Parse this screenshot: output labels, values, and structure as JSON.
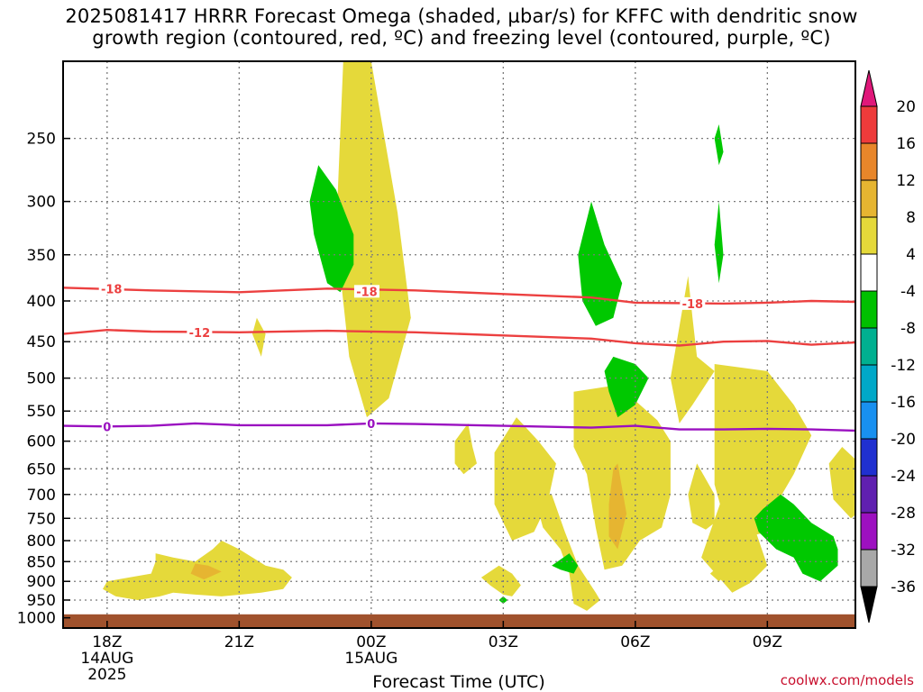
{
  "title": {
    "line1": "2025081417 HRRR Forecast Omega (shaded, µbar/s) for KFFC with dendritic snow",
    "line2": "growth region (contoured, red, ºC) and freezing level (contoured, purple, ºC)"
  },
  "credit": "coolwx.com/models",
  "chart_data": {
    "type": "contour",
    "xlabel": "Forecast Time (UTC)",
    "ylabel": "",
    "x_ticks": [
      {
        "h": 1,
        "lines": [
          "18Z",
          "14AUG",
          "2025"
        ]
      },
      {
        "h": 4,
        "lines": [
          "21Z"
        ]
      },
      {
        "h": 7,
        "lines": [
          "00Z",
          "15AUG"
        ]
      },
      {
        "h": 10,
        "lines": [
          "03Z"
        ]
      },
      {
        "h": 13,
        "lines": [
          "06Z"
        ]
      },
      {
        "h": 16,
        "lines": [
          "09Z"
        ]
      }
    ],
    "xlim": [
      0.0,
      18.0
    ],
    "y_ticks": [
      250,
      300,
      350,
      400,
      450,
      500,
      550,
      600,
      650,
      700,
      750,
      800,
      850,
      900,
      950,
      1000
    ],
    "y_scale": "log-pressure",
    "ylim": [
      1030,
      200
    ],
    "grid": true,
    "colorbar": {
      "labels": [
        "20",
        "16",
        "12",
        "8",
        "4",
        "-4",
        "-8",
        "-12",
        "-16",
        "-20",
        "-24",
        "-28",
        "-32",
        "-36"
      ],
      "colors": [
        "#e0187a",
        "#ee3b3b",
        "#e8862a",
        "#e6b531",
        "#e5d93a",
        "#ffffff",
        "#00c000",
        "#00b090",
        "#00a8c8",
        "#1890f0",
        "#2030d0",
        "#6020b0",
        "#9d10c0",
        "#a8a8a8",
        "#000000"
      ]
    },
    "fill_colors": {
      "w4": "#e5d93a",
      "w8": "#e6b531",
      "n4": "#00c800",
      "ground": "#a0522d"
    },
    "line_colors": {
      "m18": "#ec4040",
      "m12": "#ec4040",
      "zero": "#9a10c0"
    },
    "omega_regions": [
      {
        "level": "w4",
        "pts": [
          [
            6.4,
            180
          ],
          [
            7.0,
            200
          ],
          [
            7.6,
            310
          ],
          [
            7.9,
            420
          ],
          [
            7.4,
            530
          ],
          [
            6.9,
            560
          ],
          [
            6.5,
            470
          ],
          [
            6.2,
            330
          ]
        ]
      },
      {
        "level": "w4",
        "pts": [
          [
            13.5,
            565
          ],
          [
            13.8,
            600
          ],
          [
            13.8,
            700
          ],
          [
            13.6,
            770
          ],
          [
            13.1,
            800
          ],
          [
            12.7,
            860
          ],
          [
            12.3,
            870
          ],
          [
            12.1,
            770
          ],
          [
            11.9,
            660
          ],
          [
            11.6,
            610
          ],
          [
            11.6,
            520
          ],
          [
            12.6,
            510
          ]
        ]
      },
      {
        "level": "w4",
        "pts": [
          [
            14.2,
            372
          ],
          [
            14.3,
            420
          ],
          [
            14.4,
            470
          ],
          [
            14.8,
            490
          ],
          [
            14.3,
            540
          ],
          [
            14.0,
            570
          ],
          [
            13.8,
            500
          ]
        ]
      },
      {
        "level": "w4",
        "pts": [
          [
            14.4,
            640
          ],
          [
            14.8,
            700
          ],
          [
            14.8,
            760
          ],
          [
            14.6,
            775
          ],
          [
            14.3,
            760
          ],
          [
            14.2,
            700
          ]
        ]
      },
      {
        "level": "w4",
        "pts": [
          [
            14.5,
            840
          ],
          [
            14.9,
            890
          ],
          [
            15.2,
            930
          ],
          [
            15.6,
            905
          ],
          [
            16.0,
            860
          ],
          [
            15.6,
            740
          ],
          [
            15.0,
            700
          ],
          [
            14.7,
            780
          ]
        ]
      },
      {
        "level": "w4",
        "pts": [
          [
            14.8,
            480
          ],
          [
            16.0,
            490
          ],
          [
            16.6,
            540
          ],
          [
            17.0,
            590
          ],
          [
            16.6,
            660
          ],
          [
            16.2,
            720
          ],
          [
            16.0,
            780
          ],
          [
            15.6,
            790
          ],
          [
            15.1,
            780
          ],
          [
            14.8,
            680
          ],
          [
            14.8,
            560
          ]
        ]
      },
      {
        "level": "w4",
        "pts": [
          [
            17.7,
            610
          ],
          [
            18.1,
            640
          ],
          [
            18.5,
            670
          ],
          [
            18.3,
            720
          ],
          [
            17.9,
            750
          ],
          [
            17.5,
            710
          ],
          [
            17.4,
            640
          ]
        ]
      },
      {
        "level": "w4",
        "pts": [
          [
            14.9,
            860
          ],
          [
            15.1,
            880
          ],
          [
            14.9,
            900
          ],
          [
            14.7,
            880
          ]
        ]
      },
      {
        "level": "w8",
        "pts": [
          [
            12.6,
            640
          ],
          [
            12.8,
            740
          ],
          [
            12.6,
            820
          ],
          [
            12.4,
            790
          ],
          [
            12.4,
            720
          ],
          [
            12.5,
            650
          ]
        ]
      },
      {
        "level": "w4",
        "pts": [
          [
            11.1,
            700
          ],
          [
            11.4,
            780
          ],
          [
            11.7,
            860
          ],
          [
            12.1,
            930
          ],
          [
            12.2,
            950
          ],
          [
            11.9,
            980
          ],
          [
            11.6,
            960
          ],
          [
            11.5,
            880
          ],
          [
            11.3,
            820
          ],
          [
            10.9,
            770
          ],
          [
            10.7,
            700
          ]
        ]
      },
      {
        "level": "w4",
        "pts": [
          [
            10.3,
            560
          ],
          [
            10.8,
            600
          ],
          [
            11.2,
            640
          ],
          [
            11.0,
            720
          ],
          [
            10.7,
            780
          ],
          [
            10.2,
            800
          ],
          [
            9.8,
            720
          ],
          [
            9.8,
            620
          ]
        ]
      },
      {
        "level": "w4",
        "pts": [
          [
            9.9,
            860
          ],
          [
            10.2,
            880
          ],
          [
            10.4,
            910
          ],
          [
            10.2,
            940
          ],
          [
            10.0,
            935
          ],
          [
            9.7,
            910
          ],
          [
            9.5,
            890
          ]
        ]
      },
      {
        "level": "w4",
        "pts": [
          [
            6.6,
            390
          ],
          [
            7.2,
            380
          ],
          [
            7.6,
            390
          ],
          [
            7.6,
            430
          ],
          [
            7.4,
            460
          ],
          [
            7.0,
            460
          ],
          [
            6.6,
            450
          ]
        ]
      },
      {
        "level": "w4",
        "pts": [
          [
            4.4,
            420
          ],
          [
            4.6,
            440
          ],
          [
            4.5,
            470
          ],
          [
            4.3,
            440
          ]
        ]
      },
      {
        "level": "w4",
        "pts": [
          [
            9.2,
            570
          ],
          [
            9.3,
            610
          ],
          [
            9.4,
            640
          ],
          [
            9.1,
            660
          ],
          [
            8.9,
            640
          ],
          [
            8.9,
            600
          ]
        ]
      },
      {
        "level": "w4",
        "pts": [
          [
            2.1,
            830
          ],
          [
            2.5,
            840
          ],
          [
            3.0,
            850
          ],
          [
            3.4,
            820
          ],
          [
            3.6,
            800
          ],
          [
            4.0,
            820
          ],
          [
            4.6,
            860
          ],
          [
            5.0,
            870
          ],
          [
            5.2,
            890
          ],
          [
            5.0,
            920
          ],
          [
            4.5,
            930
          ],
          [
            3.6,
            940
          ],
          [
            3.0,
            935
          ],
          [
            2.5,
            930
          ],
          [
            2.2,
            940
          ],
          [
            1.7,
            950
          ],
          [
            1.2,
            940
          ],
          [
            0.9,
            920
          ],
          [
            1.0,
            900
          ],
          [
            1.5,
            890
          ],
          [
            2.0,
            880
          ],
          [
            2.1,
            850
          ]
        ]
      },
      {
        "level": "w8",
        "pts": [
          [
            3.0,
            855
          ],
          [
            3.3,
            860
          ],
          [
            3.6,
            875
          ],
          [
            3.2,
            895
          ],
          [
            2.9,
            880
          ]
        ]
      },
      {
        "level": "n4",
        "pts": [
          [
            5.8,
            270
          ],
          [
            6.2,
            290
          ],
          [
            6.6,
            330
          ],
          [
            6.6,
            360
          ],
          [
            6.3,
            390
          ],
          [
            6.0,
            380
          ],
          [
            5.7,
            330
          ],
          [
            5.6,
            300
          ]
        ]
      },
      {
        "level": "n4",
        "pts": [
          [
            12.0,
            300
          ],
          [
            12.3,
            340
          ],
          [
            12.7,
            380
          ],
          [
            12.5,
            420
          ],
          [
            12.1,
            430
          ],
          [
            11.8,
            400
          ],
          [
            11.7,
            350
          ]
        ]
      },
      {
        "level": "n4",
        "pts": [
          [
            12.5,
            470
          ],
          [
            13.0,
            480
          ],
          [
            13.3,
            500
          ],
          [
            13.0,
            540
          ],
          [
            12.6,
            560
          ],
          [
            12.4,
            520
          ],
          [
            12.3,
            490
          ]
        ]
      },
      {
        "level": "n4",
        "pts": [
          [
            16.3,
            700
          ],
          [
            16.6,
            720
          ],
          [
            17.0,
            760
          ],
          [
            17.5,
            790
          ],
          [
            17.6,
            820
          ],
          [
            17.6,
            860
          ],
          [
            17.2,
            900
          ],
          [
            16.8,
            880
          ],
          [
            16.6,
            840
          ],
          [
            16.2,
            820
          ],
          [
            15.8,
            780
          ],
          [
            15.7,
            750
          ],
          [
            15.9,
            730
          ]
        ]
      },
      {
        "level": "n4",
        "pts": [
          [
            11.5,
            830
          ],
          [
            11.7,
            860
          ],
          [
            11.6,
            880
          ],
          [
            11.3,
            870
          ],
          [
            11.1,
            860
          ]
        ]
      },
      {
        "level": "n4",
        "pts": [
          [
            14.9,
            240
          ],
          [
            15.0,
            260
          ],
          [
            14.9,
            270
          ],
          [
            14.8,
            250
          ]
        ]
      },
      {
        "level": "n4",
        "pts": [
          [
            14.9,
            300
          ],
          [
            15.0,
            350
          ],
          [
            14.9,
            380
          ],
          [
            14.8,
            340
          ]
        ]
      },
      {
        "level": "n4",
        "pts": [
          [
            10.0,
            940
          ],
          [
            10.1,
            950
          ],
          [
            10.0,
            960
          ],
          [
            9.9,
            950
          ]
        ]
      }
    ],
    "isotherms": [
      {
        "value": "-18",
        "color": "m18",
        "pts": [
          [
            0,
            385
          ],
          [
            2,
            388
          ],
          [
            4,
            390
          ],
          [
            6,
            386
          ],
          [
            8,
            388
          ],
          [
            10,
            392
          ],
          [
            12,
            396
          ],
          [
            13,
            402
          ],
          [
            15,
            403
          ],
          [
            16,
            402
          ],
          [
            17,
            400
          ],
          [
            18,
            401
          ]
        ]
      },
      {
        "value": "-12",
        "color": "m12",
        "pts": [
          [
            0,
            440
          ],
          [
            1,
            435
          ],
          [
            2,
            437
          ],
          [
            4,
            438
          ],
          [
            6,
            436
          ],
          [
            8,
            438
          ],
          [
            10,
            442
          ],
          [
            12,
            446
          ],
          [
            13,
            452
          ],
          [
            14,
            455
          ],
          [
            15,
            450
          ],
          [
            16,
            449
          ],
          [
            17,
            454
          ],
          [
            18,
            451
          ]
        ]
      },
      {
        "value": "0",
        "color": "zero",
        "pts": [
          [
            0,
            574
          ],
          [
            1,
            575
          ],
          [
            2,
            574
          ],
          [
            3,
            570
          ],
          [
            4,
            573
          ],
          [
            6,
            573
          ],
          [
            7,
            570
          ],
          [
            8,
            571
          ],
          [
            10,
            574
          ],
          [
            12,
            577
          ],
          [
            13,
            574
          ],
          [
            14,
            580
          ],
          [
            15,
            580
          ],
          [
            16,
            579
          ],
          [
            17,
            580
          ],
          [
            18,
            582
          ]
        ]
      }
    ],
    "contour_labels": [
      {
        "value": "-18",
        "x": 1.1,
        "p": 386,
        "color": "m18"
      },
      {
        "value": "-18",
        "x": 6.9,
        "p": 389,
        "color": "m18"
      },
      {
        "value": "-18",
        "x": 14.3,
        "p": 403,
        "color": "m18"
      },
      {
        "value": "-12",
        "x": 3.1,
        "p": 438,
        "color": "m12"
      },
      {
        "value": "0",
        "x": 1.0,
        "p": 575,
        "color": "zero"
      },
      {
        "value": "0",
        "x": 7.0,
        "p": 570,
        "color": "zero"
      }
    ],
    "ground_top_p": 990
  }
}
